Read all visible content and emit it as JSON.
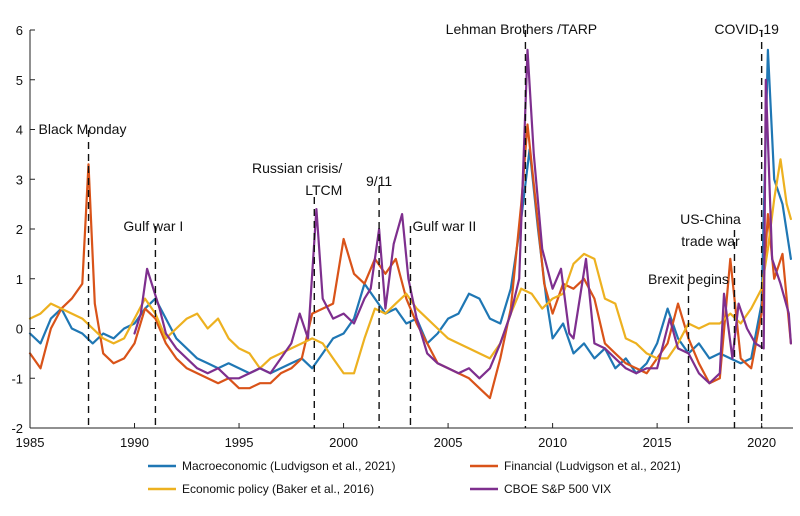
{
  "chart_data": {
    "type": "line",
    "xlim": [
      1985,
      2021.5
    ],
    "ylim": [
      -2,
      6
    ],
    "xticks": [
      1985,
      1990,
      1995,
      2000,
      2005,
      2010,
      2015,
      2020
    ],
    "yticks": [
      -2,
      -1,
      0,
      1,
      2,
      3,
      4,
      5,
      6
    ],
    "grid": false,
    "legend_position": "bottom",
    "events": [
      {
        "label_lines": [
          "Black Monday"
        ],
        "x": 1987.8
      },
      {
        "label_lines": [
          "Gulf war I"
        ],
        "x": 1991.0
      },
      {
        "label_lines": [
          "Russian crisis/",
          "LTCM"
        ],
        "x": 1998.6
      },
      {
        "label_lines": [
          "9/11"
        ],
        "x": 2001.7
      },
      {
        "label_lines": [
          "Gulf war II"
        ],
        "x": 2003.2
      },
      {
        "label_lines": [
          "Lehman Brothers /TARP"
        ],
        "x": 2008.7
      },
      {
        "label_lines": [
          "Brexit begins"
        ],
        "x": 2016.5
      },
      {
        "label_lines": [
          "US-China",
          "trade war"
        ],
        "x": 2018.7
      },
      {
        "label_lines": [
          "COVID-19"
        ],
        "x": 2020.0
      }
    ],
    "series": [
      {
        "name": "Macroeconomic (Ludvigson et al., 2021)",
        "color": "#1f77b4",
        "x": [
          1985,
          1985.5,
          1986,
          1986.5,
          1987,
          1987.5,
          1988,
          1988.5,
          1989,
          1989.5,
          1990,
          1990.5,
          1991,
          1991.5,
          1992,
          1992.5,
          1993,
          1993.5,
          1994,
          1994.5,
          1995,
          1995.5,
          1996,
          1996.5,
          1997,
          1997.5,
          1998,
          1998.5,
          1999,
          1999.5,
          2000,
          2000.5,
          2001,
          2001.5,
          2002,
          2002.5,
          2003,
          2003.5,
          2004,
          2004.5,
          2005,
          2005.5,
          2006,
          2006.5,
          2007,
          2007.5,
          2008,
          2008.5,
          2008.9,
          2009.3,
          2009.7,
          2010,
          2010.5,
          2011,
          2011.5,
          2012,
          2012.5,
          2013,
          2013.5,
          2014,
          2014.5,
          2015,
          2015.5,
          2016,
          2016.5,
          2017,
          2017.5,
          2018,
          2018.5,
          2019,
          2019.5,
          2020,
          2020.3,
          2020.6,
          2021,
          2021.4
        ],
        "values": [
          -0.1,
          -0.3,
          0.2,
          0.4,
          0.0,
          -0.1,
          -0.3,
          -0.1,
          -0.2,
          0.0,
          0.1,
          0.4,
          0.6,
          0.2,
          -0.2,
          -0.4,
          -0.6,
          -0.7,
          -0.8,
          -0.7,
          -0.8,
          -0.9,
          -0.8,
          -0.9,
          -0.8,
          -0.7,
          -0.6,
          -0.8,
          -0.5,
          -0.2,
          -0.1,
          0.2,
          0.9,
          0.6,
          0.3,
          0.4,
          0.1,
          0.2,
          -0.3,
          -0.1,
          0.2,
          0.3,
          0.7,
          0.6,
          0.2,
          0.1,
          0.8,
          2.2,
          3.6,
          2.0,
          0.6,
          -0.2,
          0.1,
          -0.5,
          -0.3,
          -0.6,
          -0.4,
          -0.8,
          -0.6,
          -0.9,
          -0.7,
          -0.3,
          0.4,
          -0.2,
          -0.5,
          -0.3,
          -0.6,
          -0.5,
          -0.6,
          -0.7,
          -0.6,
          0.5,
          5.6,
          3.0,
          2.5,
          1.4
        ]
      },
      {
        "name": "Financial (Ludvigson et al., 2021)",
        "color": "#d95319",
        "x": [
          1985,
          1985.5,
          1986,
          1986.5,
          1987,
          1987.5,
          1987.8,
          1988.1,
          1988.5,
          1989,
          1989.5,
          1990,
          1990.5,
          1991,
          1991.5,
          1992,
          1992.5,
          1993,
          1993.5,
          1994,
          1994.5,
          1995,
          1995.5,
          1996,
          1996.5,
          1997,
          1997.5,
          1998,
          1998.5,
          1999,
          1999.5,
          2000,
          2000.5,
          2001,
          2001.5,
          2002,
          2002.5,
          2003,
          2003.5,
          2004,
          2004.5,
          2005,
          2005.5,
          2006,
          2006.5,
          2007,
          2007.5,
          2008,
          2008.5,
          2008.8,
          2009.2,
          2009.6,
          2010,
          2010.5,
          2011,
          2011.5,
          2012,
          2012.5,
          2013,
          2013.5,
          2014,
          2014.5,
          2015,
          2015.5,
          2016,
          2016.5,
          2017,
          2017.5,
          2018,
          2018.5,
          2019,
          2019.5,
          2020,
          2020.3,
          2020.6,
          2021,
          2021.4
        ],
        "values": [
          -0.5,
          -0.8,
          0.0,
          0.4,
          0.6,
          0.9,
          3.3,
          0.5,
          -0.5,
          -0.7,
          -0.6,
          -0.3,
          0.4,
          0.2,
          -0.3,
          -0.6,
          -0.8,
          -0.9,
          -1.0,
          -1.1,
          -1.0,
          -1.2,
          -1.2,
          -1.1,
          -1.1,
          -0.9,
          -0.8,
          -0.6,
          0.3,
          0.4,
          0.5,
          1.8,
          1.1,
          0.9,
          1.4,
          1.1,
          1.4,
          0.6,
          0.1,
          -0.3,
          -0.7,
          -0.8,
          -0.9,
          -1.0,
          -1.2,
          -1.4,
          -0.6,
          0.4,
          2.5,
          4.1,
          2.5,
          0.9,
          0.3,
          0.9,
          0.8,
          1.0,
          0.6,
          -0.3,
          -0.5,
          -0.7,
          -0.8,
          -0.9,
          -0.6,
          -0.3,
          0.5,
          -0.2,
          -0.7,
          -1.1,
          -1.0,
          1.4,
          -0.6,
          -0.8,
          0.3,
          2.3,
          1.0,
          1.5,
          -0.3
        ]
      },
      {
        "name": "Economic policy (Baker et al., 2016)",
        "color": "#edb120",
        "x": [
          1985,
          1985.5,
          1986,
          1986.5,
          1987,
          1987.5,
          1988,
          1988.5,
          1989,
          1989.5,
          1990,
          1990.5,
          1991,
          1991.5,
          1992,
          1992.5,
          1993,
          1993.5,
          1994,
          1994.5,
          1995,
          1995.5,
          1996,
          1996.5,
          1997,
          1997.5,
          1998,
          1998.5,
          1999,
          1999.5,
          2000,
          2000.5,
          2001,
          2001.5,
          2002,
          2002.5,
          2003,
          2003.5,
          2004,
          2004.5,
          2005,
          2005.5,
          2006,
          2006.5,
          2007,
          2007.5,
          2008,
          2008.5,
          2009,
          2009.5,
          2010,
          2010.5,
          2011,
          2011.5,
          2012,
          2012.5,
          2013,
          2013.5,
          2014,
          2014.5,
          2015,
          2015.5,
          2016,
          2016.5,
          2017,
          2017.5,
          2018,
          2018.5,
          2019,
          2019.5,
          2020,
          2020.3,
          2020.6,
          2020.9,
          2021.2,
          2021.4
        ],
        "values": [
          0.2,
          0.3,
          0.5,
          0.4,
          0.3,
          0.2,
          0.0,
          -0.2,
          -0.3,
          -0.2,
          0.2,
          0.6,
          0.3,
          -0.2,
          0.0,
          0.2,
          0.3,
          0.0,
          0.2,
          -0.2,
          -0.4,
          -0.5,
          -0.8,
          -0.6,
          -0.5,
          -0.4,
          -0.3,
          -0.2,
          -0.3,
          -0.6,
          -0.9,
          -0.9,
          -0.2,
          0.4,
          0.3,
          0.5,
          0.7,
          0.4,
          0.2,
          0.0,
          -0.2,
          -0.3,
          -0.4,
          -0.5,
          -0.6,
          -0.3,
          0.3,
          0.8,
          0.7,
          0.4,
          0.6,
          0.7,
          1.3,
          1.5,
          1.4,
          0.6,
          0.5,
          -0.2,
          -0.3,
          -0.5,
          -0.6,
          -0.6,
          -0.3,
          0.1,
          0.0,
          0.1,
          0.1,
          0.3,
          0.1,
          0.4,
          0.8,
          1.6,
          2.6,
          3.4,
          2.5,
          2.2
        ]
      },
      {
        "name": "CBOE S&P 500 VIX",
        "color": "#7e2f8e",
        "x": [
          1990,
          1990.3,
          1990.6,
          1990.9,
          1991.2,
          1991.5,
          1992,
          1992.5,
          1993,
          1993.5,
          1994,
          1994.5,
          1995,
          1995.5,
          1996,
          1996.5,
          1997,
          1997.5,
          1997.9,
          1998.3,
          1998.7,
          1999,
          1999.5,
          2000,
          2000.5,
          2001,
          2001.3,
          2001.7,
          2002,
          2002.4,
          2002.8,
          2003.1,
          2003.5,
          2004,
          2004.5,
          2005,
          2005.5,
          2006,
          2006.5,
          2007,
          2007.5,
          2008,
          2008.4,
          2008.8,
          2009.1,
          2009.5,
          2010,
          2010.4,
          2010.8,
          2011,
          2011.6,
          2012,
          2012.5,
          2013,
          2013.5,
          2014,
          2014.5,
          2015,
          2015.6,
          2016,
          2016.5,
          2017,
          2017.5,
          2018,
          2018.2,
          2018.6,
          2018.9,
          2019.3,
          2019.7,
          2020.1,
          2020.2,
          2020.5,
          2020.9,
          2021.3,
          2021.4
        ],
        "values": [
          -0.1,
          0.3,
          1.2,
          0.8,
          0.4,
          -0.1,
          -0.4,
          -0.6,
          -0.8,
          -0.9,
          -0.8,
          -1.0,
          -1.0,
          -0.9,
          -0.8,
          -0.9,
          -0.6,
          -0.3,
          0.3,
          -0.2,
          2.4,
          0.6,
          0.2,
          0.3,
          0.1,
          0.6,
          0.8,
          2.0,
          0.4,
          1.7,
          2.3,
          1.0,
          0.2,
          -0.5,
          -0.7,
          -0.8,
          -0.9,
          -0.8,
          -1.0,
          -0.8,
          -0.3,
          0.3,
          1.0,
          5.6,
          3.5,
          1.6,
          0.8,
          1.2,
          -0.1,
          -0.2,
          1.4,
          -0.3,
          -0.4,
          -0.6,
          -0.8,
          -0.9,
          -0.8,
          -0.8,
          0.2,
          -0.4,
          -0.5,
          -0.9,
          -1.1,
          -0.9,
          0.7,
          -0.6,
          0.5,
          0.0,
          -0.3,
          -0.4,
          5.0,
          1.4,
          0.9,
          0.3,
          -0.3
        ]
      }
    ]
  }
}
